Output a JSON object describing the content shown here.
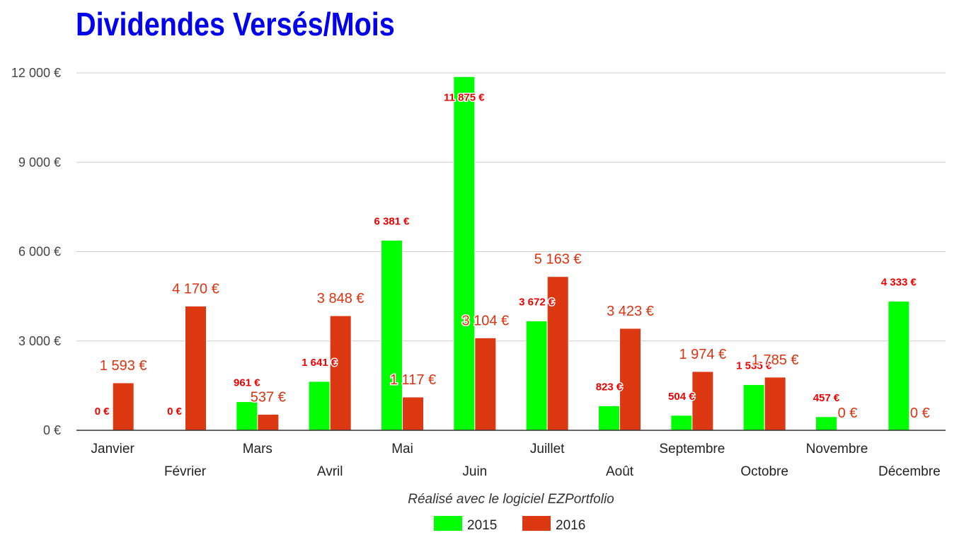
{
  "chart_data": {
    "type": "bar",
    "title": "Dividendes Versés/Mois",
    "caption": "Réalisé avec le logiciel EZPortfolio",
    "categories": [
      "Janvier",
      "Février",
      "Mars",
      "Avril",
      "Mai",
      "Juin",
      "Juillet",
      "Août",
      "Septembre",
      "Octobre",
      "Novembre",
      "Décembre"
    ],
    "series": [
      {
        "name": "2015",
        "color": "#00ff00",
        "values": [
          0,
          0,
          961,
          1641,
          6381,
          11875,
          3672,
          823,
          504,
          1535,
          457,
          4333
        ],
        "labels": [
          "0 €",
          "0 €",
          "961 €",
          "1 641 €",
          "6 381 €",
          "11 875 €",
          "3 672 €",
          "823 €",
          "504 €",
          "1 535 €",
          "457 €",
          "4 333 €"
        ]
      },
      {
        "name": "2016",
        "color": "#dc3912",
        "values": [
          1593,
          4170,
          537,
          3848,
          1117,
          3104,
          5163,
          3423,
          1974,
          1785,
          0,
          0
        ],
        "labels": [
          "1 593 €",
          "4 170 €",
          "537 €",
          "3 848 €",
          "1 117 €",
          "3 104 €",
          "5 163 €",
          "3 423 €",
          "1 974 €",
          "1 785 €",
          "0 €",
          "0 €"
        ]
      }
    ],
    "ylim": [
      0,
      12000
    ],
    "yticks": [
      0,
      3000,
      6000,
      9000,
      12000
    ],
    "ytick_labels": [
      "0 €",
      "3 000 €",
      "6 000 €",
      "9 000 €",
      "12 000 €"
    ],
    "grid": true,
    "legend": "bottom"
  }
}
